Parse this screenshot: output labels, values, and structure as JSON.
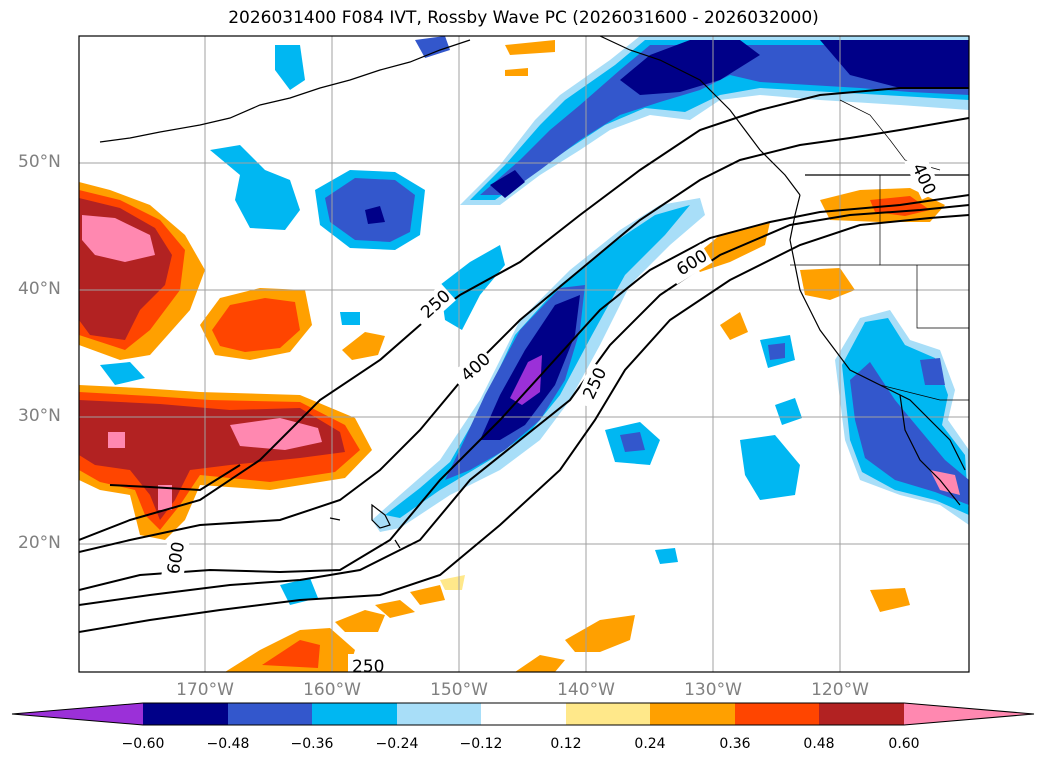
{
  "title": "2026031400 F084 IVT, Rossby Wave PC (2026031600 - 2026032000)",
  "map": {
    "lat_labels": [
      "50°N",
      "40°N",
      "30°N",
      "20°N"
    ],
    "lon_labels": [
      "170°W",
      "160°W",
      "150°W",
      "140°W",
      "130°W",
      "120°W"
    ],
    "contour_labels": [
      "250",
      "400",
      "600",
      "600",
      "250",
      "400",
      "250"
    ]
  },
  "colorbar": {
    "colors": [
      "#9b30d8",
      "#000088",
      "#3357cc",
      "#00b7f2",
      "#a8def8",
      "#ffffff",
      "#ffe88a",
      "#ffa000",
      "#ff4500",
      "#b22222",
      "#ff88b0"
    ],
    "tick_labels": [
      "−0.60",
      "−0.48",
      "−0.36",
      "−0.24",
      "−0.12",
      "0.12",
      "0.24",
      "0.36",
      "0.48",
      "0.60"
    ]
  },
  "colors": {
    "grid": "#a0a0a0",
    "coast": "#000000",
    "axis_label": "#808080"
  }
}
